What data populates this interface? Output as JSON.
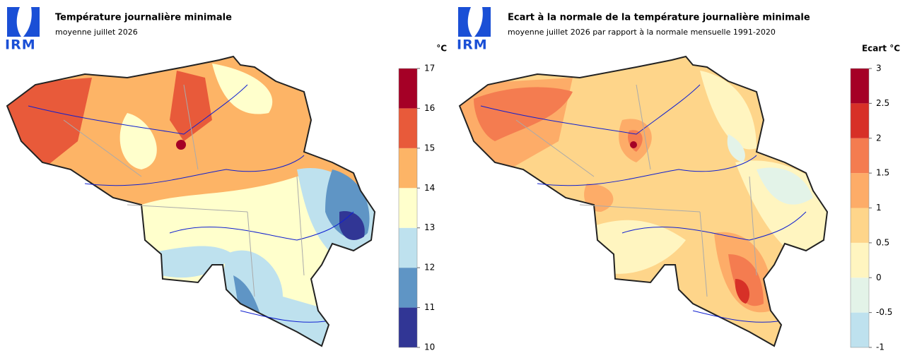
{
  "panels": [
    {
      "logo": "IRM",
      "title": "Température journalière minimale",
      "subtitle": "moyenne juillet 2026",
      "unit": "°C",
      "legend": {
        "ticks": [
          10,
          11,
          12,
          13,
          14,
          15,
          16,
          17
        ],
        "colors": [
          "#313695",
          "#5f95c5",
          "#bee1ee",
          "#ffffcc",
          "#fdb466",
          "#e85a3a",
          "#a50026"
        ]
      }
    },
    {
      "logo": "IRM",
      "title": "Ecart à la normale de la température journalière minimale",
      "subtitle": "moyenne juillet 2026 par rapport à la normale mensuelle 1991-2020",
      "unit": "Ecart °C",
      "legend": {
        "ticks": [
          -1,
          -0.5,
          0,
          0.5,
          1,
          1.5,
          2,
          2.5,
          3
        ],
        "colors": [
          "#bee1ee",
          "#e3f3e8",
          "#fff5c0",
          "#fed58a",
          "#fdac68",
          "#f47c50",
          "#d73027",
          "#a50026"
        ]
      }
    }
  ]
}
